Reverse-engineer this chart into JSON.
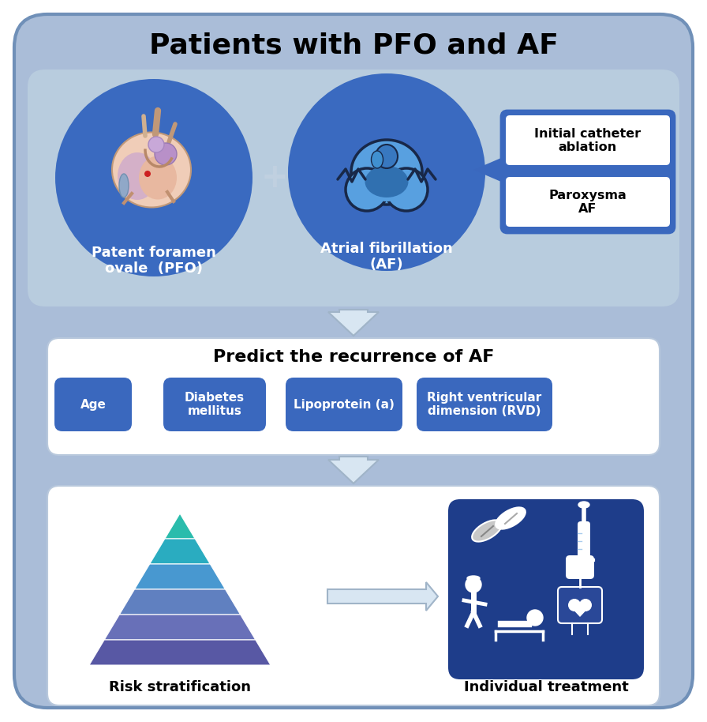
{
  "title": "Patients with PFO and AF",
  "bg_color": "#aabdd8",
  "section_bg": "#b8ccde",
  "white": "#ffffff",
  "circle_blue": "#3a6ac0",
  "box_blue": "#3a68be",
  "callout_blue": "#3a68be",
  "arrow_fill": "#d8e6f2",
  "arrow_edge": "#a0b4c8",
  "treatment_dark": "#1e3d8a",
  "pfo_label": "Patent foramen\novale  (PFO)",
  "af_label": "Atrial fibrillation\n(AF)",
  "plus_text": "+",
  "callout_top": "Initial catheter\nablation",
  "callout_bot": "Paroxysma\nAF",
  "predict_title": "Predict the recurrence of AF",
  "factor_labels": [
    "Age",
    "Diabetes\nmellitus",
    "Lipoprotein (a)",
    "Right ventricular\ndimension (RVD)"
  ],
  "risk_label": "Risk stratification",
  "treatment_label": "Individual treatment",
  "pyramid_colors": [
    "#2abcac",
    "#2aacc0",
    "#4898d0",
    "#6080c0",
    "#6870b8",
    "#5858a4"
  ]
}
